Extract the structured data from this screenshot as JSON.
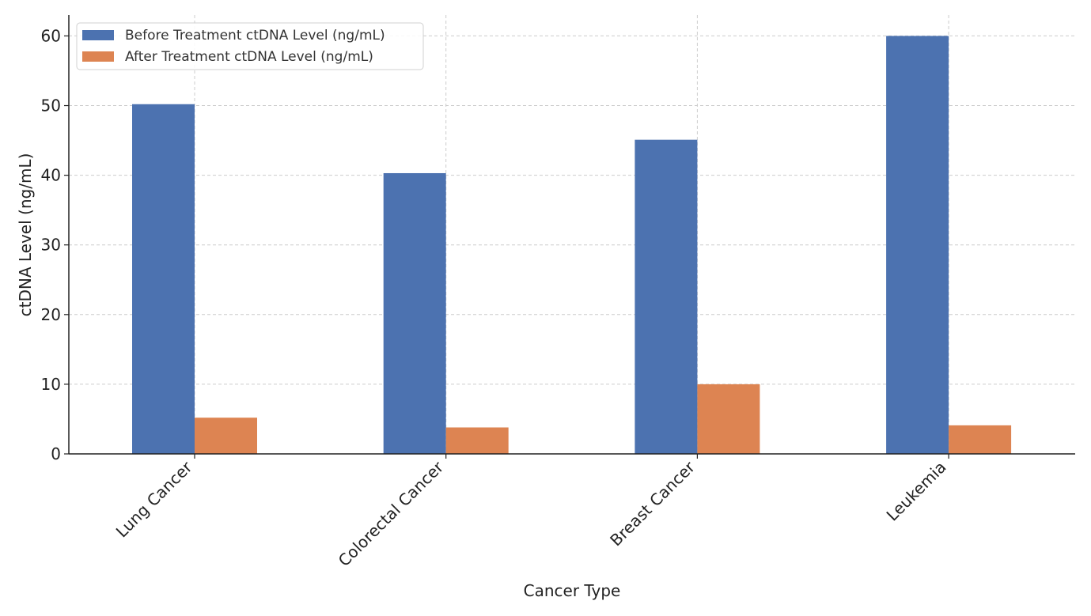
{
  "chart_data": {
    "type": "bar",
    "title": "",
    "xlabel": "Cancer Type",
    "ylabel": "ctDNA Level (ng/mL)",
    "categories": [
      "Lung Cancer",
      "Colorectal Cancer",
      "Breast Cancer",
      "Leukemia"
    ],
    "series": [
      {
        "name": "Before Treatment ctDNA Level (ng/mL)",
        "color": "#4c72b0",
        "values": [
          50.2,
          40.3,
          45.1,
          60.0
        ]
      },
      {
        "name": "After Treatment ctDNA Level (ng/mL)",
        "color": "#dd8452",
        "values": [
          5.2,
          3.8,
          10.0,
          4.1
        ]
      }
    ],
    "ylim": [
      0,
      63
    ],
    "yticks": [
      0,
      10,
      20,
      30,
      40,
      50,
      60
    ],
    "grid": true,
    "legend_position": "top-left"
  }
}
